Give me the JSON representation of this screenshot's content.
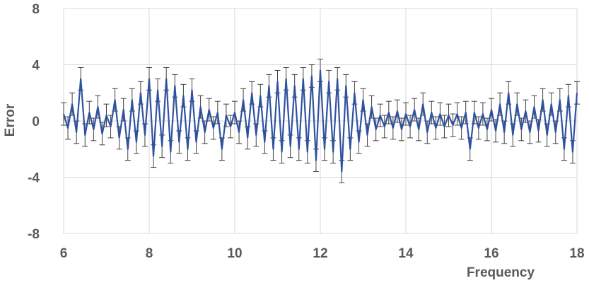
{
  "chart_data": {
    "type": "line",
    "title": "",
    "xlabel": "Frequency",
    "ylabel": "Error",
    "xlim": [
      6,
      18
    ],
    "ylim": [
      -8,
      8
    ],
    "x_ticks": [
      "6",
      "8",
      "10",
      "12",
      "14",
      "16",
      "18"
    ],
    "y_ticks": [
      "8",
      "4",
      "0",
      "-4",
      "-8"
    ],
    "grid": true,
    "error_bars": true,
    "line_color": "#2F52A0",
    "errorbar_color": "#404040",
    "grid_color": "#d9d9d9",
    "series": [
      {
        "x": [
          6.0,
          6.1,
          6.2,
          6.3,
          6.4,
          6.5,
          6.6,
          6.7,
          6.8,
          6.9,
          7.0,
          7.1,
          7.2,
          7.3,
          7.4,
          7.5,
          7.6,
          7.7,
          7.8,
          7.9,
          8.0,
          8.1,
          8.2,
          8.3,
          8.4,
          8.5,
          8.6,
          8.7,
          8.8,
          8.9,
          9.0,
          9.1,
          9.2,
          9.3,
          9.4,
          9.5,
          9.6,
          9.7,
          9.8,
          9.9,
          10.0,
          10.1,
          10.2,
          10.3,
          10.4,
          10.5,
          10.6,
          10.7,
          10.8,
          10.9,
          11.0,
          11.1,
          11.2,
          11.3,
          11.4,
          11.5,
          11.6,
          11.7,
          11.8,
          11.9,
          12.0,
          12.1,
          12.2,
          12.3,
          12.4,
          12.5,
          12.6,
          12.7,
          12.8,
          12.9,
          13.0,
          13.1,
          13.2,
          13.3,
          13.4,
          13.5,
          13.6,
          13.7,
          13.8,
          13.9,
          14.0,
          14.1,
          14.2,
          14.3,
          14.4,
          14.5,
          14.6,
          14.7,
          14.8,
          14.9,
          15.0,
          15.1,
          15.2,
          15.3,
          15.4,
          15.5,
          15.6,
          15.7,
          15.8,
          15.9,
          16.0,
          16.1,
          16.2,
          16.3,
          16.4,
          16.5,
          16.6,
          16.7,
          16.8,
          16.9,
          17.0,
          17.1,
          17.2,
          17.3,
          17.4,
          17.5,
          17.6,
          17.7,
          17.8,
          17.9,
          18.0
        ],
        "y": [
          0.5,
          -0.5,
          1.2,
          -0.8,
          3.0,
          -1.0,
          0.6,
          -0.6,
          1.0,
          -0.9,
          0.4,
          -0.4,
          1.5,
          -1.2,
          0.8,
          -2.0,
          1.5,
          -1.5,
          2.0,
          -1.0,
          3.0,
          -2.5,
          2.2,
          -1.8,
          3.0,
          -2.2,
          2.5,
          -1.5,
          1.8,
          -2.0,
          2.2,
          -1.5,
          1.0,
          -0.8,
          0.8,
          -0.5,
          0.6,
          -2.0,
          0.4,
          -0.4,
          0.6,
          -0.8,
          1.5,
          -1.2,
          2.0,
          -1.0,
          1.8,
          -1.5,
          2.5,
          -2.0,
          2.8,
          -2.2,
          3.0,
          -1.8,
          2.5,
          -2.0,
          3.0,
          -2.2,
          3.2,
          -2.8,
          3.6,
          -2.0,
          2.8,
          -2.2,
          3.0,
          -3.6,
          2.5,
          -2.0,
          2.0,
          -1.5,
          1.5,
          -1.0,
          1.0,
          -0.6,
          0.4,
          -0.4,
          0.6,
          -0.5,
          0.7,
          -0.6,
          0.5,
          -0.4,
          0.8,
          -0.6,
          1.2,
          -0.8,
          0.6,
          -0.5,
          0.5,
          -0.4,
          0.4,
          -0.3,
          0.5,
          -0.5,
          0.6,
          -2.0,
          0.6,
          -0.5,
          0.5,
          -0.6,
          0.8,
          -0.7,
          1.2,
          -0.8,
          2.0,
          -1.0,
          1.2,
          -0.6,
          0.7,
          -0.8,
          1.0,
          -0.7,
          1.5,
          -1.0,
          1.2,
          -0.8,
          1.5,
          -2.0,
          1.8,
          -2.2,
          2.0
        ],
        "err": [
          0.8,
          0.8,
          0.8,
          0.8,
          0.8,
          0.8,
          0.8,
          0.8,
          0.8,
          0.8,
          0.8,
          0.8,
          0.8,
          0.8,
          0.8,
          0.8,
          0.8,
          0.8,
          0.8,
          0.8,
          0.8,
          0.8,
          0.8,
          0.8,
          0.8,
          0.8,
          0.8,
          0.8,
          0.8,
          0.8,
          0.8,
          0.8,
          0.8,
          0.8,
          0.8,
          0.8,
          0.8,
          0.8,
          0.8,
          0.8,
          0.8,
          0.8,
          0.8,
          0.8,
          0.8,
          0.8,
          0.8,
          0.8,
          0.8,
          0.8,
          0.8,
          0.8,
          0.8,
          0.8,
          0.8,
          0.8,
          0.8,
          0.8,
          0.8,
          0.8,
          0.8,
          0.8,
          0.8,
          0.8,
          0.8,
          0.8,
          0.8,
          0.8,
          0.8,
          0.8,
          0.8,
          0.8,
          0.8,
          0.8,
          0.8,
          0.8,
          0.8,
          0.8,
          0.8,
          0.8,
          0.8,
          0.8,
          0.8,
          0.8,
          0.8,
          0.8,
          0.8,
          0.8,
          0.8,
          0.8,
          0.8,
          0.8,
          0.8,
          0.8,
          0.8,
          0.8,
          0.8,
          0.8,
          0.8,
          0.8,
          0.8,
          0.8,
          0.8,
          0.8,
          0.8,
          0.8,
          0.8,
          0.8,
          0.8,
          0.8,
          0.8,
          0.8,
          0.8,
          0.8,
          0.8,
          0.8,
          0.8,
          0.8,
          0.8,
          0.8,
          0.8
        ]
      }
    ]
  }
}
